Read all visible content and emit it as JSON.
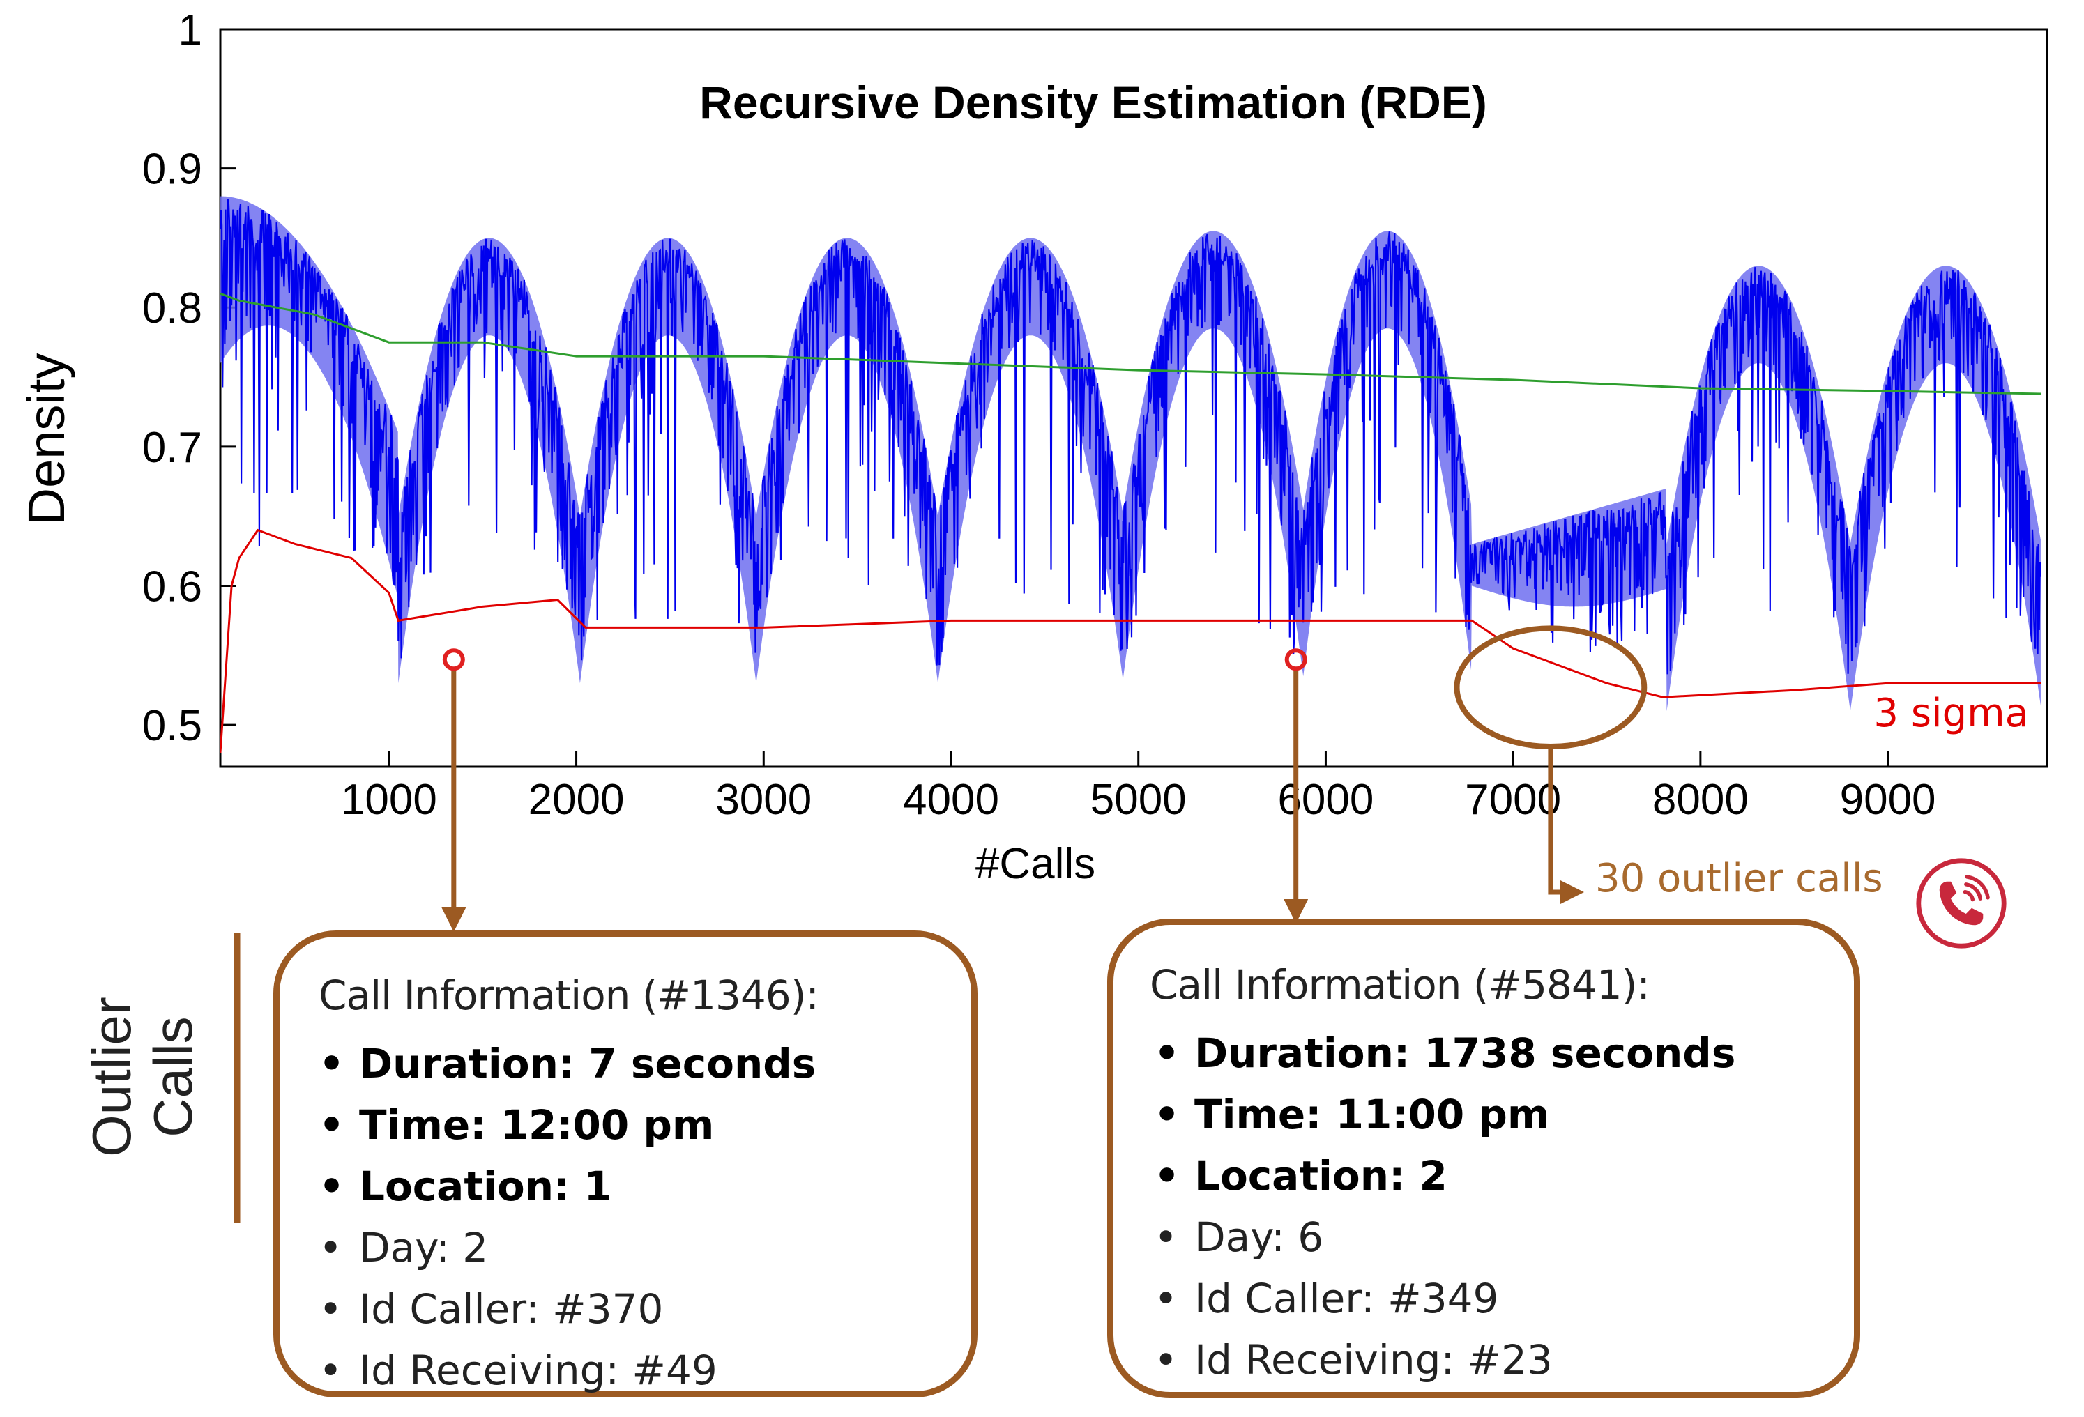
{
  "chart_data": {
    "type": "line",
    "title": "Recursive Density Estimation (RDE)",
    "xlabel": "#Calls",
    "ylabel": "Density",
    "xlim": [
      100,
      9850
    ],
    "ylim": [
      0.47,
      1.0
    ],
    "x_ticks": [
      1000,
      2000,
      3000,
      4000,
      5000,
      6000,
      7000,
      8000,
      9000
    ],
    "y_ticks": [
      "0.5",
      "0.6",
      "0.7",
      "0.8",
      "0.9",
      "1"
    ],
    "grid": false,
    "series": [
      {
        "color": "#0000ee",
        "description_points": {
          "segment_bounds": [
            100,
            1050,
            2020,
            2960,
            3930,
            4920,
            5880,
            6780,
            7820,
            8800,
            9820
          ],
          "segment_peaks": [
            0.88,
            0.85,
            0.85,
            0.85,
            0.85,
            0.855,
            0.855,
            0.67,
            0.83,
            0.83
          ],
          "segment_floors": [
            0.6,
            0.6,
            0.57,
            0.6,
            0.58,
            0.55,
            0.58,
            0.55,
            0.57,
            0.57
          ]
        }
      },
      {
        "color": "#2e9e2e",
        "x": [
          100,
          200,
          600,
          1000,
          1500,
          2000,
          2500,
          3000,
          4000,
          5000,
          6000,
          7000,
          8000,
          9000,
          9820
        ],
        "y": [
          0.81,
          0.805,
          0.795,
          0.775,
          0.775,
          0.765,
          0.765,
          0.765,
          0.76,
          0.755,
          0.752,
          0.748,
          0.742,
          0.74,
          0.738
        ]
      },
      {
        "name": "3 sigma",
        "color": "#e00000",
        "x": [
          100,
          160,
          200,
          300,
          500,
          800,
          1000,
          1050,
          1500,
          1900,
          2050,
          3000,
          4000,
          5000,
          6000,
          6780,
          7000,
          7500,
          7800,
          8500,
          9000,
          9820
        ],
        "y": [
          0.48,
          0.6,
          0.62,
          0.64,
          0.63,
          0.62,
          0.595,
          0.575,
          0.585,
          0.59,
          0.57,
          0.57,
          0.575,
          0.575,
          0.575,
          0.575,
          0.555,
          0.53,
          0.52,
          0.525,
          0.53,
          0.53
        ]
      }
    ],
    "annotations": {
      "sigma_label": "3 sigma",
      "outlier_summary": "30 outlier calls",
      "outlier_markers": [
        {
          "x": 1346,
          "y": 0.547
        },
        {
          "x": 5841,
          "y": 0.547
        }
      ],
      "outlier_region": {
        "x_center": 7200,
        "y_center": 0.527,
        "x_range": [
          6700,
          7700
        ],
        "y_range": [
          0.485,
          0.57
        ]
      }
    }
  },
  "side_label": {
    "line1": "Outlier",
    "line2": "Calls"
  },
  "cards": [
    {
      "title": "Call Information (#1346):",
      "items": [
        {
          "text": "Duration: 7 seconds",
          "bold": true
        },
        {
          "text": "Time: 12:00 pm",
          "bold": true
        },
        {
          "text": "Location: 1",
          "bold": true
        },
        {
          "text": "Day: 2",
          "bold": false
        },
        {
          "text": "Id Caller: #370",
          "bold": false
        },
        {
          "text": "Id Receiving: #49",
          "bold": false
        }
      ]
    },
    {
      "title": "Call Information (#5841):",
      "items": [
        {
          "text": "Duration: 1738 seconds",
          "bold": true
        },
        {
          "text": "Time: 11:00 pm",
          "bold": true
        },
        {
          "text": "Location: 2",
          "bold": true
        },
        {
          "text": "Day: 6",
          "bold": false
        },
        {
          "text": "Id Caller: #349",
          "bold": false
        },
        {
          "text": "Id Receiving: #23",
          "bold": false
        }
      ]
    }
  ],
  "colors": {
    "density": "#0000ee",
    "mean": "#2e9e2e",
    "sigma": "#e00000",
    "annotation": "#9c5a22",
    "phone_icon": "#c8283c"
  },
  "icons": [
    "phone-ring-icon",
    "person-on-phone-icon"
  ]
}
